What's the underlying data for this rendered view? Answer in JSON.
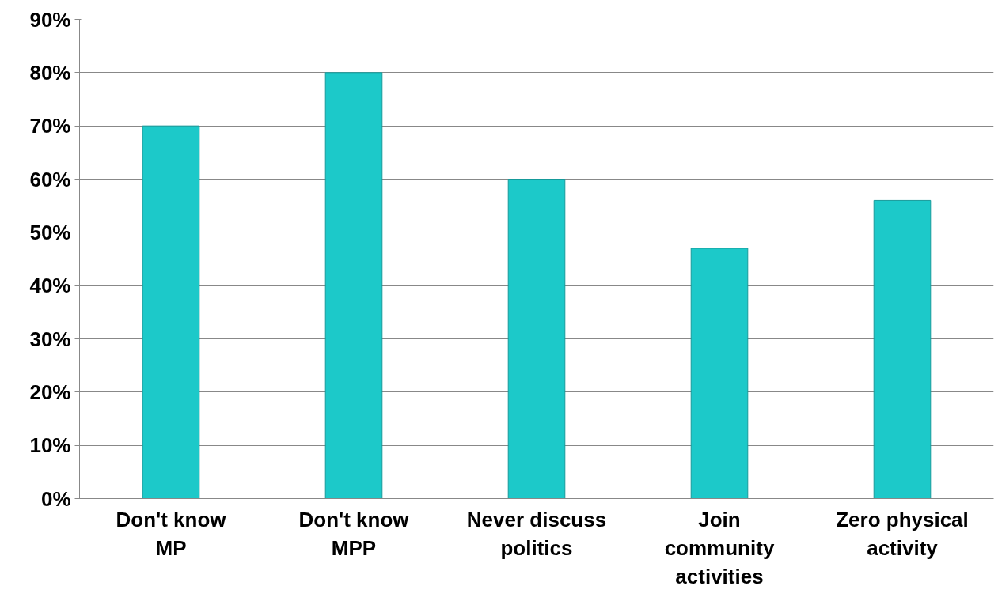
{
  "chart_data": {
    "type": "bar",
    "categories": [
      "Don't know\nMP",
      "Don't know\nMPP",
      "Never discuss\npolitics",
      "Join\ncommunity\nactivities",
      "Zero physical\nactivity"
    ],
    "values": [
      70,
      80,
      60,
      47,
      56
    ],
    "color": "#1cc9c9",
    "ylim": [
      0,
      90
    ],
    "yticks": [
      {
        "value": 0,
        "label": "0%"
      },
      {
        "value": 10,
        "label": "10%"
      },
      {
        "value": 20,
        "label": "20%"
      },
      {
        "value": 30,
        "label": "30%"
      },
      {
        "value": 40,
        "label": "40%"
      },
      {
        "value": 50,
        "label": "50%"
      },
      {
        "value": 60,
        "label": "60%"
      },
      {
        "value": 70,
        "label": "70%"
      },
      {
        "value": 80,
        "label": "80%"
      },
      {
        "value": 90,
        "label": "90%"
      }
    ],
    "grid": "y"
  }
}
